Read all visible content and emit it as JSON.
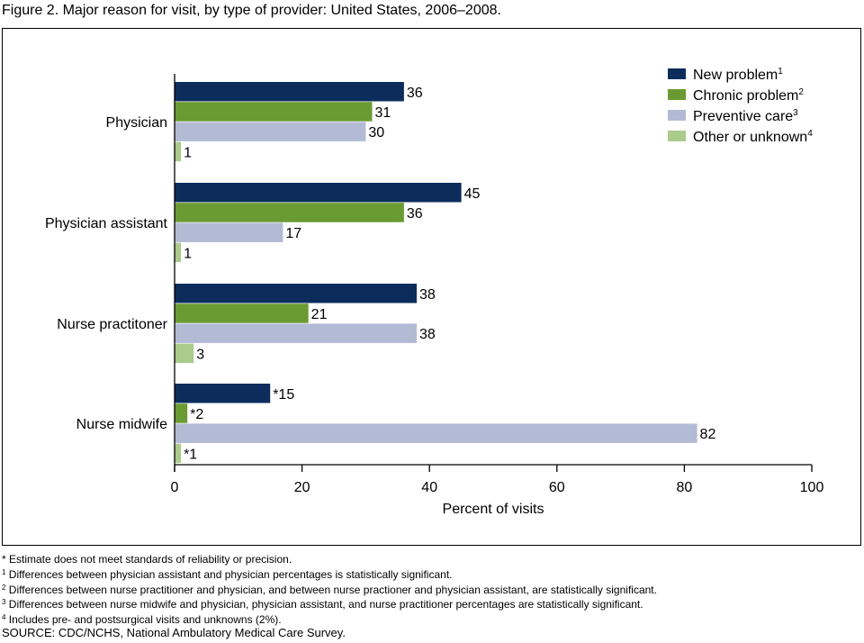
{
  "chart_data": {
    "type": "bar",
    "orientation": "horizontal",
    "title": "Figure 2. Major reason for visit, by type of provider: United States, 2006–2008.",
    "xlabel": "Percent of visits",
    "ylabel": "",
    "xlim": [
      0,
      100
    ],
    "xticks": [
      "0",
      "20",
      "40",
      "60",
      "80",
      "100"
    ],
    "categories": [
      "Physician",
      "Physician assistant",
      "Nurse practitoner",
      "Nurse midwife"
    ],
    "series": [
      {
        "name": "New problem",
        "sup": "1",
        "color": "#0c2d5c",
        "values": [
          36,
          45,
          38,
          15
        ],
        "labels": [
          "36",
          "45",
          "38",
          "*15"
        ]
      },
      {
        "name": "Chronic problem",
        "sup": "2",
        "color": "#6a9a32",
        "values": [
          31,
          36,
          21,
          2
        ],
        "labels": [
          "31",
          "36",
          "21",
          "*2"
        ]
      },
      {
        "name": "Preventive care",
        "sup": "3",
        "color": "#b3bad4",
        "values": [
          30,
          17,
          38,
          82
        ],
        "labels": [
          "30",
          "17",
          "38",
          "82"
        ]
      },
      {
        "name": "Other or unknown",
        "sup": "4",
        "color": "#aacb8c",
        "values": [
          1,
          1,
          3,
          1
        ],
        "labels": [
          "1",
          "1",
          "3",
          "*1"
        ]
      }
    ],
    "legend_position": "top-right",
    "grid": false
  },
  "footnotes": [
    {
      "mark": "*",
      "text": " Estimate does not meet standards of reliability or precision."
    },
    {
      "mark": "1",
      "text": " Differences between physician assistant and physician percentages is statistically significant."
    },
    {
      "mark": "2",
      "text": " Differences between nurse practitioner and physician, and between nurse practioner and physician assistant, are statistically significant."
    },
    {
      "mark": "3",
      "text": " Differences between nurse midwife and physician, physician assistant, and nurse practitioner percentages are statistically significant."
    },
    {
      "mark": "4",
      "text": " Includes pre- and postsurgical visits and unknowns (2%)."
    }
  ],
  "source": "SOURCE: CDC/NCHS, National Ambulatory Medical Care Survey."
}
